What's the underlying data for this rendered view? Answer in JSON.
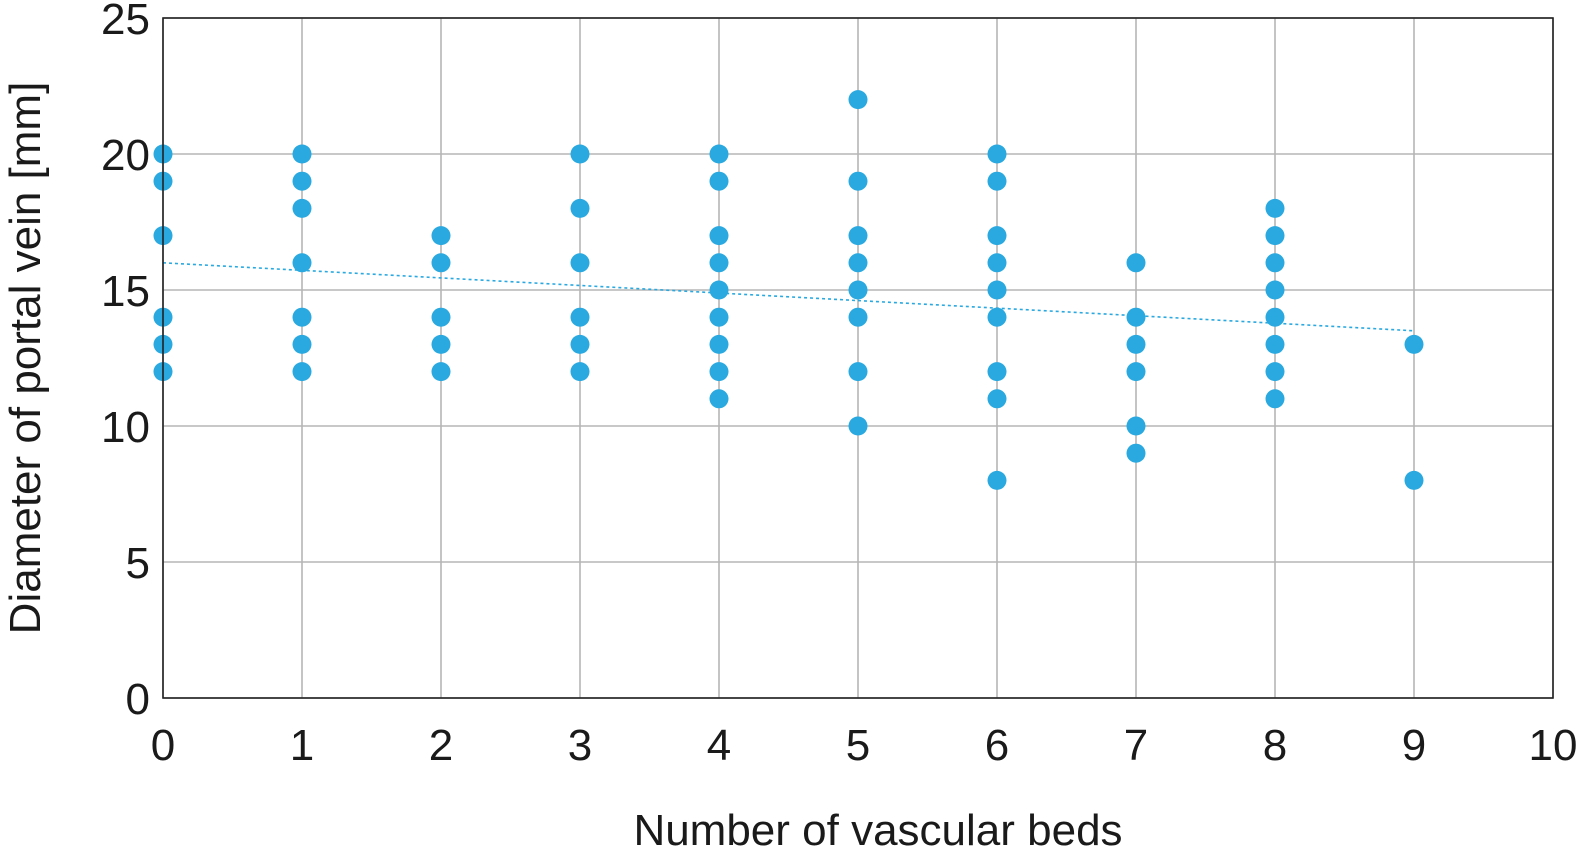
{
  "chart_data": {
    "type": "scatter",
    "xlabel": "Number of vascular beds",
    "ylabel": "Diameter of portal vein [mm]",
    "xlim": [
      0,
      10
    ],
    "ylim": [
      0,
      25
    ],
    "x_ticks": [
      "0",
      "1",
      "2",
      "3",
      "4",
      "5",
      "6",
      "7",
      "8",
      "9",
      "10"
    ],
    "y_ticks": [
      "0",
      "5",
      "10",
      "15",
      "20",
      "25"
    ],
    "grid": true,
    "legend": "none",
    "colors": {
      "points": "#2aa9e0",
      "trendline": "#2aa9e0",
      "grid": "#b5b5b5",
      "frame": "#222222"
    },
    "points": [
      {
        "x": 0,
        "y": 20
      },
      {
        "x": 0,
        "y": 19
      },
      {
        "x": 0,
        "y": 17
      },
      {
        "x": 0,
        "y": 14
      },
      {
        "x": 0,
        "y": 13
      },
      {
        "x": 0,
        "y": 12
      },
      {
        "x": 1,
        "y": 20
      },
      {
        "x": 1,
        "y": 19
      },
      {
        "x": 1,
        "y": 18
      },
      {
        "x": 1,
        "y": 16
      },
      {
        "x": 1,
        "y": 14
      },
      {
        "x": 1,
        "y": 13
      },
      {
        "x": 1,
        "y": 12
      },
      {
        "x": 2,
        "y": 17
      },
      {
        "x": 2,
        "y": 16
      },
      {
        "x": 2,
        "y": 14
      },
      {
        "x": 2,
        "y": 13
      },
      {
        "x": 2,
        "y": 12
      },
      {
        "x": 3,
        "y": 20
      },
      {
        "x": 3,
        "y": 18
      },
      {
        "x": 3,
        "y": 16
      },
      {
        "x": 3,
        "y": 14
      },
      {
        "x": 3,
        "y": 13
      },
      {
        "x": 3,
        "y": 12
      },
      {
        "x": 4,
        "y": 20
      },
      {
        "x": 4,
        "y": 19
      },
      {
        "x": 4,
        "y": 17
      },
      {
        "x": 4,
        "y": 16
      },
      {
        "x": 4,
        "y": 15
      },
      {
        "x": 4,
        "y": 14
      },
      {
        "x": 4,
        "y": 13
      },
      {
        "x": 4,
        "y": 12
      },
      {
        "x": 4,
        "y": 11
      },
      {
        "x": 5,
        "y": 22
      },
      {
        "x": 5,
        "y": 19
      },
      {
        "x": 5,
        "y": 17
      },
      {
        "x": 5,
        "y": 16
      },
      {
        "x": 5,
        "y": 15
      },
      {
        "x": 5,
        "y": 14
      },
      {
        "x": 5,
        "y": 12
      },
      {
        "x": 5,
        "y": 10
      },
      {
        "x": 6,
        "y": 20
      },
      {
        "x": 6,
        "y": 19
      },
      {
        "x": 6,
        "y": 17
      },
      {
        "x": 6,
        "y": 16
      },
      {
        "x": 6,
        "y": 15
      },
      {
        "x": 6,
        "y": 14
      },
      {
        "x": 6,
        "y": 12
      },
      {
        "x": 6,
        "y": 11
      },
      {
        "x": 6,
        "y": 8
      },
      {
        "x": 7,
        "y": 16
      },
      {
        "x": 7,
        "y": 14
      },
      {
        "x": 7,
        "y": 13
      },
      {
        "x": 7,
        "y": 12
      },
      {
        "x": 7,
        "y": 10
      },
      {
        "x": 7,
        "y": 9
      },
      {
        "x": 8,
        "y": 18
      },
      {
        "x": 8,
        "y": 17
      },
      {
        "x": 8,
        "y": 16
      },
      {
        "x": 8,
        "y": 15
      },
      {
        "x": 8,
        "y": 14
      },
      {
        "x": 8,
        "y": 13
      },
      {
        "x": 8,
        "y": 12
      },
      {
        "x": 8,
        "y": 11
      },
      {
        "x": 9,
        "y": 13
      },
      {
        "x": 9,
        "y": 8
      }
    ],
    "trendline": {
      "style": "dotted",
      "from": {
        "x": 0,
        "y": 16
      },
      "to": {
        "x": 9,
        "y": 13.5
      }
    }
  }
}
